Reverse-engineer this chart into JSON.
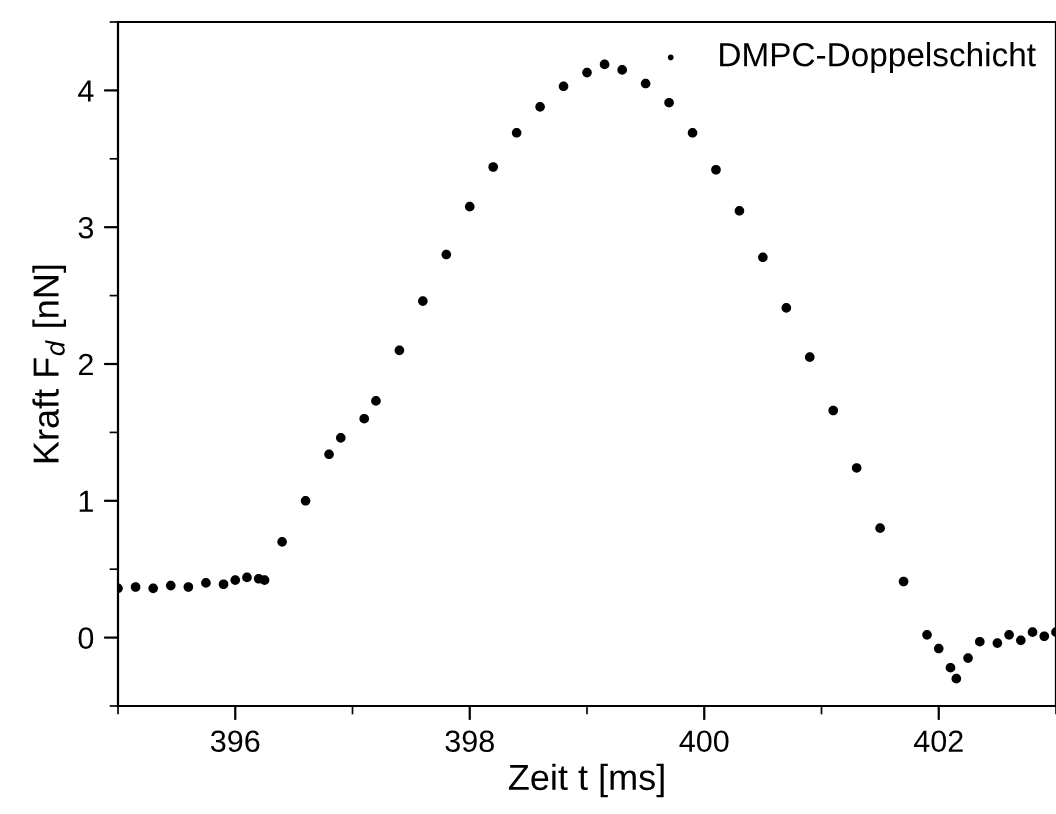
{
  "chart_data": {
    "type": "scatter",
    "xlabel": "Zeit t [ms]",
    "ylabel": "Kraft F$_{d}$ [nN]",
    "xlim": [
      395,
      403
    ],
    "xticks": [
      396,
      398,
      400,
      402
    ],
    "ylim": [
      -0.5,
      4.5
    ],
    "yticks": [
      0,
      1,
      2,
      3,
      4
    ],
    "legend": "top right",
    "marker": "circle",
    "grid": false,
    "series": [
      {
        "name": "DMPC-Doppelschicht",
        "color": "#000000",
        "x": [
          395.0,
          395.15,
          395.3,
          395.45,
          395.6,
          395.75,
          395.9,
          396.0,
          396.1,
          396.2,
          396.25,
          396.4,
          396.6,
          396.8,
          396.9,
          397.1,
          397.2,
          397.4,
          397.6,
          397.8,
          398.0,
          398.2,
          398.4,
          398.6,
          398.8,
          399.0,
          399.15,
          399.3,
          399.5,
          399.7,
          399.9,
          400.1,
          400.3,
          400.5,
          400.7,
          400.9,
          401.1,
          401.3,
          401.5,
          401.7,
          401.9,
          402.0,
          402.1,
          402.15,
          402.25,
          402.35,
          402.5,
          402.6,
          402.7,
          402.8,
          402.9,
          403.0
        ],
        "values": [
          0.36,
          0.37,
          0.36,
          0.38,
          0.37,
          0.4,
          0.39,
          0.42,
          0.44,
          0.43,
          0.42,
          0.7,
          1.0,
          1.34,
          1.46,
          1.6,
          1.73,
          2.1,
          2.46,
          2.8,
          3.15,
          3.44,
          3.69,
          3.88,
          4.03,
          4.13,
          4.19,
          4.15,
          4.05,
          3.91,
          3.69,
          3.42,
          3.12,
          2.78,
          2.41,
          2.05,
          1.66,
          1.24,
          0.8,
          0.41,
          0.02,
          -0.08,
          -0.22,
          -0.3,
          -0.15,
          -0.03,
          -0.04,
          0.02,
          -0.02,
          0.04,
          0.01,
          0.04
        ]
      }
    ]
  }
}
